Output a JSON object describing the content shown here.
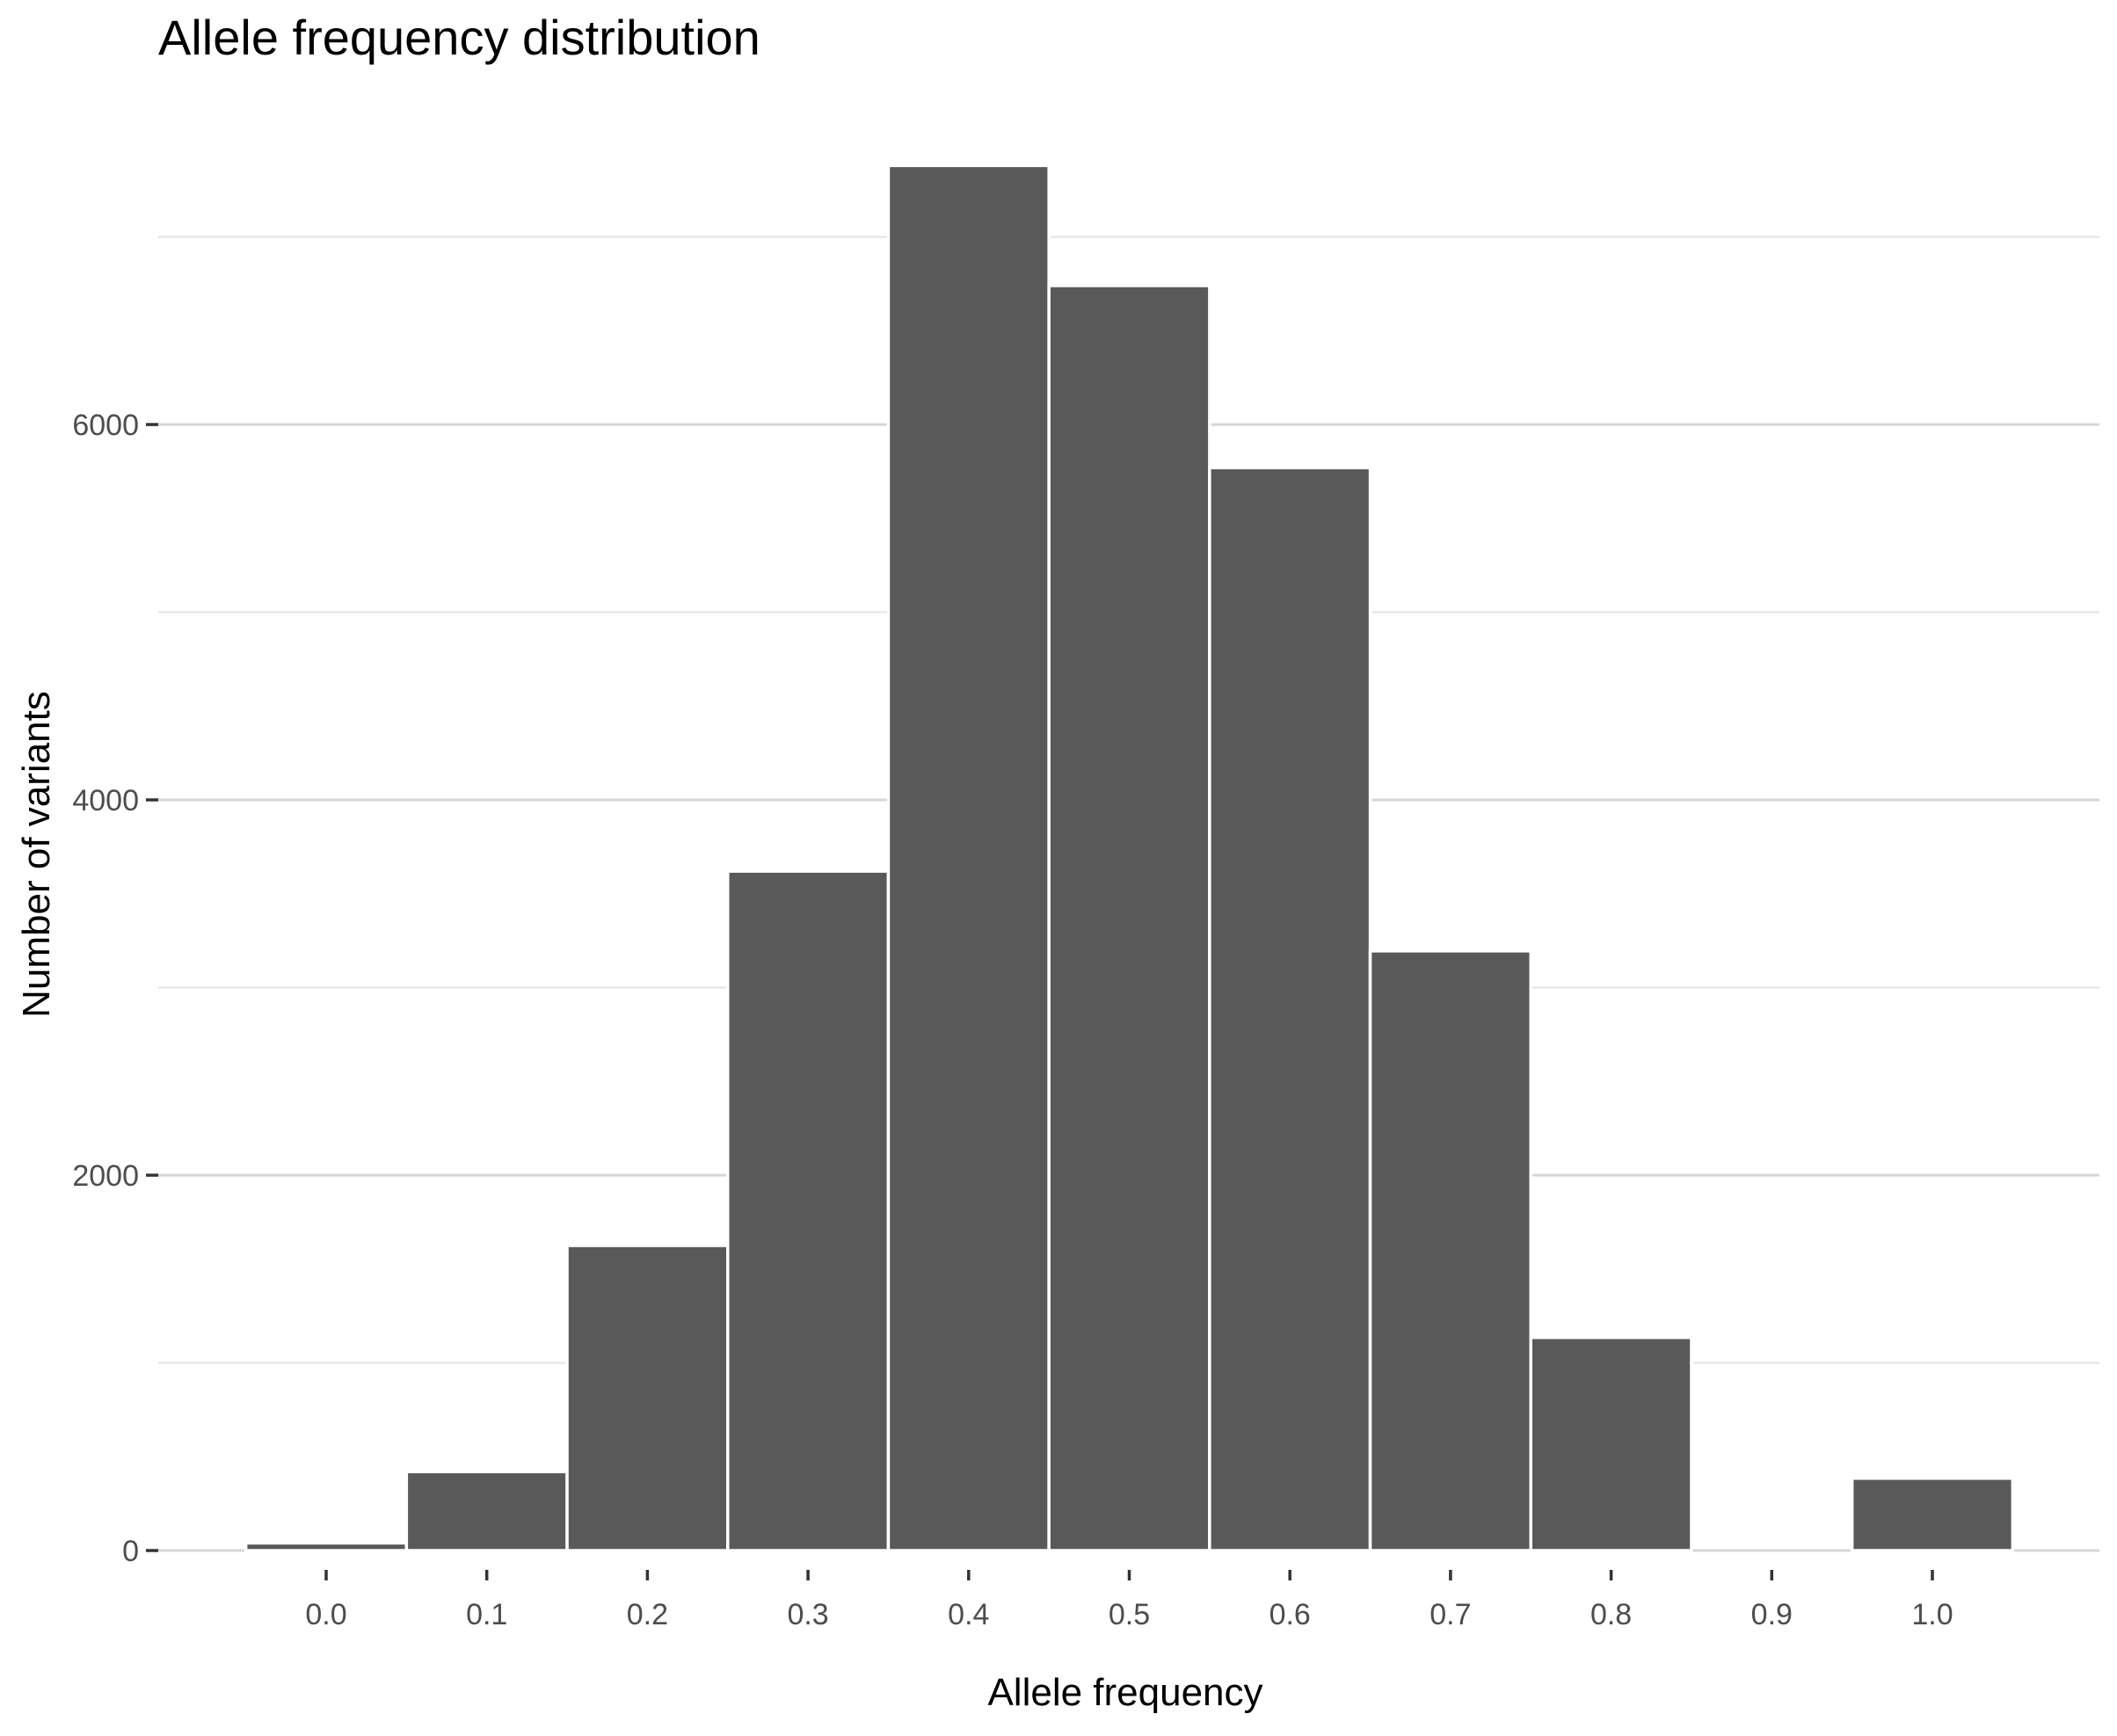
{
  "colors": {
    "bar_fill": "#595959",
    "bar_outline": "#ffffff",
    "grid": "#d6d6d6",
    "tick_text": "#4d4d4d"
  },
  "chart_data": {
    "type": "bar",
    "title": "Allele frequency distribution",
    "xlabel": "Allele frequency",
    "ylabel": "Number of variants",
    "bin_width": 0.1,
    "categories": [
      "0.0",
      "0.1",
      "0.2",
      "0.3",
      "0.4",
      "0.5",
      "0.6",
      "0.7",
      "0.8",
      "0.9",
      "1.0"
    ],
    "x": [
      0.0,
      0.1,
      0.2,
      0.3,
      0.4,
      0.5,
      0.6,
      0.7,
      0.8,
      0.9,
      1.0
    ],
    "values": [
      40,
      420,
      1625,
      3620,
      7380,
      6740,
      5770,
      3195,
      1135,
      0,
      385
    ],
    "x_ticks": [
      "0.0",
      "0.1",
      "0.2",
      "0.3",
      "0.4",
      "0.5",
      "0.6",
      "0.7",
      "0.8",
      "0.9",
      "1.0"
    ],
    "y_ticks": [
      "0",
      "2000",
      "4000",
      "6000"
    ],
    "xlim": [
      -0.105,
      1.105
    ],
    "ylim": [
      -369,
      7380
    ],
    "grid": true,
    "legend": "none"
  }
}
